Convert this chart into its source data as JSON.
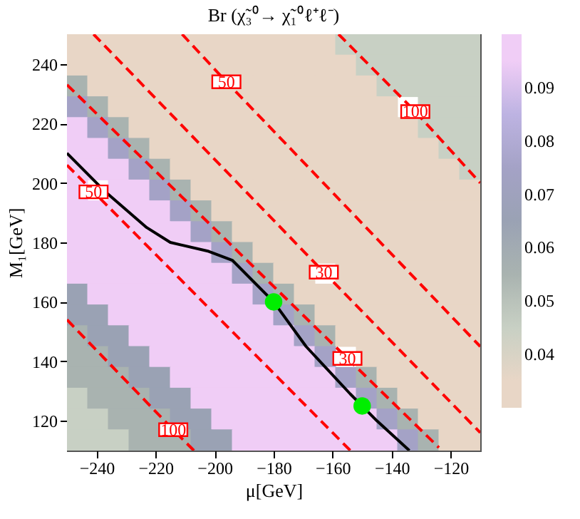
{
  "chart_data": {
    "type": "heatmap",
    "title": "Br (χ̃₃⁰→ χ̃₁⁰ℓ⁺ℓ⁻)",
    "xlabel": "μ[GeV]",
    "ylabel": "M₁[GeV]",
    "xlim": [
      -250,
      -110
    ],
    "xticks": [
      -240,
      -220,
      -200,
      -180,
      -160,
      -140,
      -120
    ],
    "ylim": [
      110,
      250
    ],
    "yticks": [
      120,
      140,
      160,
      180,
      200,
      220,
      240
    ],
    "clim": [
      0.03,
      0.1
    ],
    "cticks": [
      0.04,
      0.05,
      0.06,
      0.07,
      0.08,
      0.09
    ],
    "colors": [
      "#e8d6c6",
      "#c8d0c4",
      "#a9b3b0",
      "#9aa2b4",
      "#a4a2c6",
      "#bdb3e2",
      "#f0cdf6"
    ],
    "x": [
      -246.5,
      -239.5,
      -232.5,
      -225.5,
      -218.5,
      -211.5,
      -204.5,
      -197.5,
      -190.5,
      -183.5,
      -176.5,
      -169.5,
      -162.5,
      -155.5,
      -148.5,
      -141.5,
      -134.5,
      -127.5,
      -120.5,
      -113.5
    ],
    "y": [
      246.5,
      239.5,
      232.5,
      225.5,
      218.5,
      211.5,
      204.5,
      197.5,
      190.5,
      183.5,
      176.5,
      169.5,
      162.5,
      155.5,
      148.5,
      141.5,
      134.5,
      127.5,
      120.5,
      113.5
    ],
    "cells": [
      [
        0.035,
        0.035,
        0.035,
        0.035,
        0.035,
        0.035,
        0.035,
        0.035,
        0.035,
        0.035,
        0.035,
        0.035,
        0.035,
        0.045,
        0.045,
        0.045,
        0.045,
        0.045,
        0.045,
        0.045
      ],
      [
        0.035,
        0.035,
        0.035,
        0.035,
        0.035,
        0.035,
        0.035,
        0.035,
        0.035,
        0.035,
        0.035,
        0.035,
        0.035,
        0.035,
        0.045,
        0.045,
        0.045,
        0.045,
        0.045,
        0.045
      ],
      [
        0.055,
        0.035,
        0.035,
        0.035,
        0.035,
        0.035,
        0.035,
        0.035,
        0.035,
        0.035,
        0.035,
        0.035,
        0.035,
        0.035,
        0.035,
        0.045,
        0.045,
        0.045,
        0.045,
        0.045
      ],
      [
        0.075,
        0.055,
        0.035,
        0.035,
        0.035,
        0.035,
        0.035,
        0.035,
        0.035,
        0.035,
        0.035,
        0.035,
        0.035,
        0.035,
        0.035,
        0.035,
        null,
        0.045,
        0.045,
        0.045
      ],
      [
        0.095,
        0.075,
        0.055,
        0.035,
        0.035,
        0.035,
        0.035,
        0.035,
        0.035,
        0.035,
        0.035,
        0.035,
        0.035,
        0.035,
        0.035,
        0.035,
        0.035,
        0.045,
        0.045,
        0.045
      ],
      [
        0.095,
        0.095,
        0.075,
        0.055,
        0.035,
        0.035,
        0.035,
        0.035,
        0.035,
        0.035,
        0.035,
        0.035,
        0.035,
        0.035,
        0.035,
        0.035,
        0.035,
        0.035,
        0.045,
        0.045
      ],
      [
        0.095,
        0.095,
        0.095,
        0.075,
        0.055,
        0.035,
        0.035,
        0.035,
        0.035,
        0.035,
        0.035,
        0.035,
        0.035,
        0.035,
        0.035,
        0.035,
        0.035,
        0.035,
        0.035,
        0.045
      ],
      [
        0.095,
        null,
        0.095,
        0.095,
        0.075,
        0.055,
        0.035,
        0.035,
        0.035,
        0.035,
        0.035,
        0.035,
        0.035,
        0.035,
        0.035,
        0.035,
        0.035,
        0.035,
        0.035,
        0.035
      ],
      [
        0.095,
        0.095,
        0.095,
        0.095,
        0.095,
        0.075,
        0.055,
        0.035,
        0.035,
        0.035,
        0.035,
        0.035,
        0.035,
        0.035,
        0.035,
        0.035,
        0.035,
        0.035,
        0.035,
        0.035
      ],
      [
        0.095,
        0.095,
        0.095,
        0.095,
        0.095,
        0.095,
        0.075,
        0.055,
        0.035,
        0.035,
        0.035,
        0.035,
        0.035,
        0.035,
        0.035,
        0.035,
        0.035,
        0.035,
        0.035,
        0.035
      ],
      [
        0.095,
        0.095,
        0.095,
        0.095,
        0.095,
        0.095,
        0.095,
        0.075,
        0.055,
        0.035,
        0.035,
        0.035,
        0.035,
        0.035,
        0.035,
        0.035,
        0.035,
        0.035,
        0.035,
        0.035
      ],
      [
        0.095,
        0.095,
        0.095,
        0.095,
        0.095,
        0.095,
        0.095,
        0.095,
        0.075,
        0.055,
        0.035,
        0.035,
        null,
        0.035,
        0.035,
        0.035,
        0.035,
        0.035,
        0.035,
        0.035
      ],
      [
        0.065,
        0.095,
        0.095,
        0.095,
        0.095,
        0.095,
        0.095,
        0.095,
        0.095,
        0.075,
        0.055,
        0.035,
        0.035,
        0.035,
        0.035,
        0.035,
        0.035,
        0.035,
        0.035,
        0.035
      ],
      [
        0.065,
        0.065,
        0.095,
        0.095,
        0.095,
        0.095,
        0.095,
        0.095,
        0.095,
        0.095,
        0.075,
        0.055,
        0.035,
        0.035,
        0.035,
        0.035,
        0.035,
        0.035,
        0.035,
        0.035
      ],
      [
        0.055,
        0.065,
        0.065,
        0.095,
        0.095,
        0.095,
        0.095,
        0.095,
        0.095,
        0.095,
        0.095,
        0.075,
        0.055,
        0.035,
        0.035,
        0.035,
        0.035,
        0.035,
        0.035,
        0.035
      ],
      [
        0.055,
        0.055,
        0.065,
        0.065,
        0.095,
        0.095,
        0.095,
        0.095,
        0.095,
        0.095,
        0.095,
        0.095,
        0.075,
        null,
        0.035,
        0.035,
        0.035,
        0.035,
        0.035,
        0.035
      ],
      [
        0.055,
        0.055,
        0.055,
        0.065,
        0.065,
        0.095,
        0.095,
        0.095,
        0.095,
        0.095,
        0.095,
        0.095,
        0.095,
        0.075,
        0.055,
        0.035,
        0.035,
        0.035,
        0.035,
        0.035
      ],
      [
        0.045,
        0.055,
        0.055,
        0.055,
        0.065,
        0.065,
        0.095,
        0.095,
        0.095,
        0.095,
        0.095,
        0.095,
        0.095,
        0.095,
        0.075,
        0.055,
        0.035,
        0.035,
        0.035,
        0.035
      ],
      [
        0.045,
        0.045,
        0.055,
        0.055,
        0.055,
        0.065,
        0.065,
        0.095,
        0.095,
        0.095,
        0.095,
        0.095,
        0.095,
        0.095,
        0.095,
        0.075,
        0.055,
        0.035,
        0.035,
        0.035
      ],
      [
        0.045,
        0.045,
        0.045,
        0.055,
        0.055,
        0.055,
        0.065,
        0.065,
        0.095,
        0.095,
        0.095,
        0.095,
        0.095,
        0.095,
        0.095,
        0.095,
        0.075,
        0.055,
        0.035,
        0.035
      ]
    ],
    "series": [
      {
        "type": "line",
        "name": "30",
        "color": "#ff0000",
        "line_style": "dashed",
        "x": [
          -241,
          -163,
          -110
        ],
        "values": [
          250,
          170,
          116
        ]
      },
      {
        "type": "line",
        "name": "50",
        "color": "#ff0000",
        "line_style": "dashed",
        "x": [
          -211,
          -196,
          -110
        ],
        "values": [
          250,
          234,
          145
        ]
      },
      {
        "type": "line",
        "name": "100",
        "color": "#ff0000",
        "line_style": "dashed",
        "x": [
          -158,
          -132,
          -110
        ],
        "values": [
          250,
          224,
          200
        ]
      },
      {
        "type": "line",
        "name": "30",
        "color": "#ff0000",
        "line_style": "dashed",
        "x": [
          -250,
          -155,
          -124
        ],
        "values": [
          233,
          141,
          111
        ]
      },
      {
        "type": "line",
        "name": "50",
        "color": "#ff0000",
        "line_style": "dashed",
        "x": [
          -250,
          -241,
          -154
        ],
        "values": [
          206,
          197,
          110
        ]
      },
      {
        "type": "line",
        "name": "100",
        "color": "#ff0000",
        "line_style": "dashed",
        "x": [
          -250,
          -214,
          -207
        ],
        "values": [
          154,
          117,
          110
        ]
      },
      {
        "type": "line",
        "color": "#000000",
        "line_style": "solid",
        "x": [
          -250,
          -237,
          -223,
          -215,
          -202,
          -194,
          -180,
          -169,
          -154,
          -145,
          -134
        ],
        "values": [
          210,
          197,
          185,
          180,
          177,
          174,
          160,
          145,
          129,
          120,
          110
        ]
      },
      {
        "type": "scatter",
        "color": "#00ee00",
        "marker": "circle",
        "x": [
          -180,
          -150
        ],
        "values": [
          160,
          125
        ]
      }
    ]
  }
}
